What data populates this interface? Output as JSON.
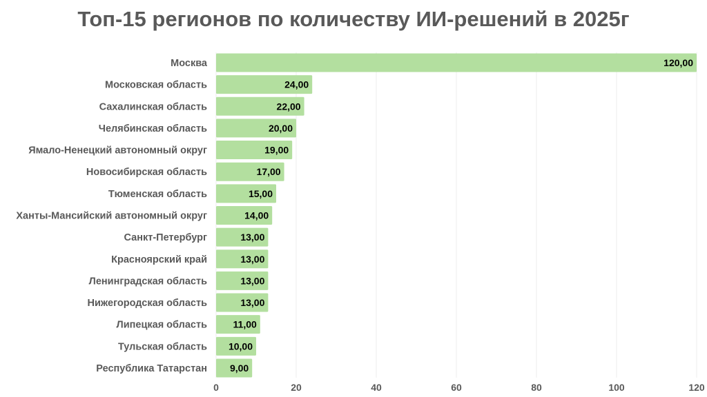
{
  "chart_data": {
    "type": "bar",
    "orientation": "horizontal",
    "title": "Топ-15 регионов по количеству ИИ-решений в 2025г",
    "xlabel": "",
    "ylabel": "",
    "categories": [
      "Москва",
      "Московская область",
      "Сахалинская область",
      "Челябинская область",
      "Ямало-Ненецкий автономный округ",
      "Новосибирская область",
      "Тюменская область",
      "Ханты-Мансийский автономный округ",
      "Санкт-Петербург",
      "Красноярский край",
      "Ленинградская область",
      "Нижегородская область",
      "Липецкая область",
      "Тульская область",
      "Республика Татарстан"
    ],
    "values": [
      120,
      24,
      22,
      20,
      19,
      17,
      15,
      14,
      13,
      13,
      13,
      13,
      11,
      10,
      9
    ],
    "data_labels": [
      "120,00",
      "24,00",
      "22,00",
      "20,00",
      "19,00",
      "17,00",
      "15,00",
      "14,00",
      "13,00",
      "13,00",
      "13,00",
      "13,00",
      "11,00",
      "10,00",
      "9,00"
    ],
    "xlim": [
      0,
      120
    ],
    "xticks": [
      0,
      20,
      40,
      60,
      80,
      100,
      120
    ],
    "xtick_labels": [
      "0",
      "20",
      "40",
      "60",
      "80",
      "100",
      "120"
    ],
    "grid": "vertical",
    "legend": "none",
    "bar_color": "#b3df9f"
  }
}
